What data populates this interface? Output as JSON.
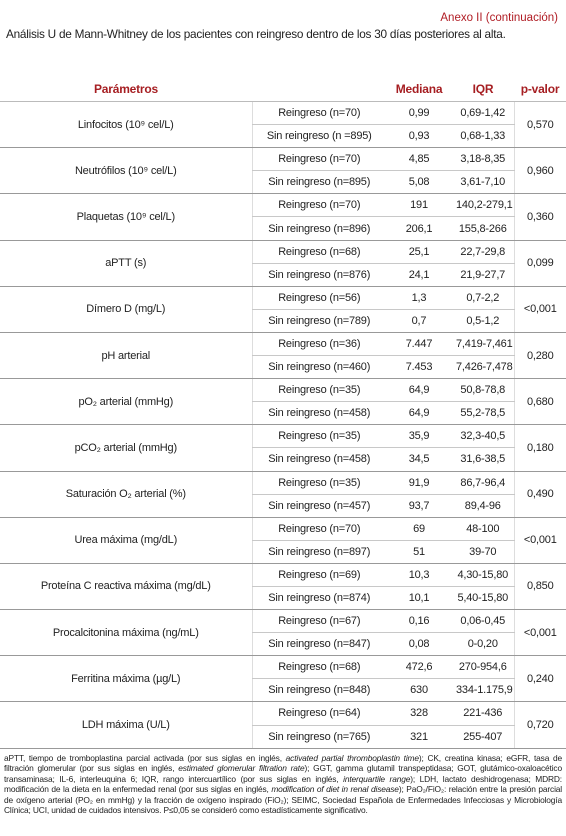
{
  "header": {
    "annex": "Anexo II (continuación)",
    "title": "Análisis U de Mann-Whitney de los pacientes con reingreso dentro de los 30 días posteriores al alta."
  },
  "table": {
    "columns": [
      "Parámetros",
      "Mediana",
      "IQR",
      "p-valor"
    ],
    "rows": [
      {
        "parameter": "Linfocitos (10⁹ cel/L)",
        "groups": [
          {
            "group": "Reingreso (n=70)",
            "median": "0,99",
            "iqr": "0,69-1,42"
          },
          {
            "group": "Sin reingreso (n =895)",
            "median": "0,93",
            "iqr": "0,68-1,33"
          }
        ],
        "p": "0,570"
      },
      {
        "parameter": "Neutrófilos (10⁹ cel/L)",
        "groups": [
          {
            "group": "Reingreso (n=70)",
            "median": "4,85",
            "iqr": "3,18-8,35"
          },
          {
            "group": "Sin reingreso (n=895)",
            "median": "5,08",
            "iqr": "3,61-7,10"
          }
        ],
        "p": "0,960"
      },
      {
        "parameter": "Plaquetas (10⁹ cel/L)",
        "groups": [
          {
            "group": "Reingreso (n=70)",
            "median": "191",
            "iqr": "140,2-279,1"
          },
          {
            "group": "Sin reingreso (n=896)",
            "median": "206,1",
            "iqr": "155,8-266"
          }
        ],
        "p": "0,360"
      },
      {
        "parameter": "aPTT (s)",
        "groups": [
          {
            "group": "Reingreso (n=68)",
            "median": "25,1",
            "iqr": "22,7-29,8"
          },
          {
            "group": "Sin reingreso (n=876)",
            "median": "24,1",
            "iqr": "21,9-27,7"
          }
        ],
        "p": "0,099"
      },
      {
        "parameter": "Dímero D (mg/L)",
        "groups": [
          {
            "group": "Reingreso (n=56)",
            "median": "1,3",
            "iqr": "0,7-2,2"
          },
          {
            "group": "Sin reingreso (n=789)",
            "median": "0,7",
            "iqr": "0,5-1,2"
          }
        ],
        "p": "<0,001"
      },
      {
        "parameter": "pH arterial",
        "groups": [
          {
            "group": "Reingreso (n=36)",
            "median": "7.447",
            "iqr": "7,419-7,461"
          },
          {
            "group": "Sin reingreso (n=460)",
            "median": "7.453",
            "iqr": "7,426-7,478"
          }
        ],
        "p": "0,280"
      },
      {
        "parameter": "pO₂ arterial (mmHg)",
        "groups": [
          {
            "group": "Reingreso (n=35)",
            "median": "64,9",
            "iqr": "50,8-78,8"
          },
          {
            "group": "Sin reingreso (n=458)",
            "median": "64,9",
            "iqr": "55,2-78,5"
          }
        ],
        "p": "0,680"
      },
      {
        "parameter": "pCO₂ arterial (mmHg)",
        "groups": [
          {
            "group": "Reingreso (n=35)",
            "median": "35,9",
            "iqr": "32,3-40,5"
          },
          {
            "group": "Sin reingreso (n=458)",
            "median": "34,5",
            "iqr": "31,6-38,5"
          }
        ],
        "p": "0,180"
      },
      {
        "parameter": "Saturación O₂ arterial (%)",
        "groups": [
          {
            "group": "Reingreso (n=35)",
            "median": "91,9",
            "iqr": "86,7-96,4"
          },
          {
            "group": "Sin reingreso (n=457)",
            "median": "93,7",
            "iqr": "89,4-96"
          }
        ],
        "p": "0,490"
      },
      {
        "parameter": "Urea máxima (mg/dL)",
        "groups": [
          {
            "group": "Reingreso (n=70)",
            "median": "69",
            "iqr": "48-100"
          },
          {
            "group": "Sin reingreso (n=897)",
            "median": "51",
            "iqr": "39-70"
          }
        ],
        "p": "<0,001"
      },
      {
        "parameter": "Proteína C reactiva máxima (mg/dL)",
        "groups": [
          {
            "group": "Reingreso (n=69)",
            "median": "10,3",
            "iqr": "4,30-15,80"
          },
          {
            "group": "Sin reingreso (n=874)",
            "median": "10,1",
            "iqr": "5,40-15,80"
          }
        ],
        "p": "0,850"
      },
      {
        "parameter": "Procalcitonina máxima (ng/mL)",
        "groups": [
          {
            "group": "Reingreso (n=67)",
            "median": "0,16",
            "iqr": "0,06-0,45"
          },
          {
            "group": "Sin reingreso (n=847)",
            "median": "0,08",
            "iqr": "0-0,20"
          }
        ],
        "p": "<0,001"
      },
      {
        "parameter": "Ferritina máxima (µg/L)",
        "groups": [
          {
            "group": "Reingreso (n=68)",
            "median": "472,6",
            "iqr": "270-954,6"
          },
          {
            "group": "Sin reingreso (n=848)",
            "median": "630",
            "iqr": "334-1.175,9"
          }
        ],
        "p": "0,240"
      },
      {
        "parameter": "LDH máxima (U/L)",
        "groups": [
          {
            "group": "Reingreso (n=64)",
            "median": "328",
            "iqr": "221-436"
          },
          {
            "group": "Sin reingreso (n=765)",
            "median": "321",
            "iqr": "255-407"
          }
        ],
        "p": "0,720"
      }
    ]
  },
  "footnote": [
    {
      "text": "aPTT, tiempo de tromboplastina parcial activada (por sus siglas en inglés, ",
      "italic": false
    },
    {
      "text": "activated partial thromboplastin time",
      "italic": true
    },
    {
      "text": "); CK, creatina kinasa; eGFR, tasa de filtración glomerular (por sus siglas en inglés, ",
      "italic": false
    },
    {
      "text": "estimated glomerular filtration rate",
      "italic": true
    },
    {
      "text": "); GGT, gamma glutamil transpeptidasa; GOT, glutámico-oxaloacético transaminasa; IL-6, interleuquina 6; IQR, rango intercuartílico (por sus siglas en inglés, ",
      "italic": false
    },
    {
      "text": "interquartile range",
      "italic": true
    },
    {
      "text": "); LDH, lactato deshidrogenasa; MDRD: modificación de la dieta en la enfermedad renal (por sus siglas en inglés, ",
      "italic": false
    },
    {
      "text": "modification of diet in renal disease",
      "italic": true
    },
    {
      "text": "); PaO₂/FiO₂: relación entre la presión parcial de oxígeno arterial (PO₂ en mmHg) y la fracción de oxígeno inspirado (FiO₂); SEIMC, Sociedad Española de Enfermedades Infecciosas y Microbiología Clínica; UCI, unidad de cuidados intensivos. P≤0,05 se consideró como estadísticamente significativo.",
      "italic": false
    }
  ]
}
